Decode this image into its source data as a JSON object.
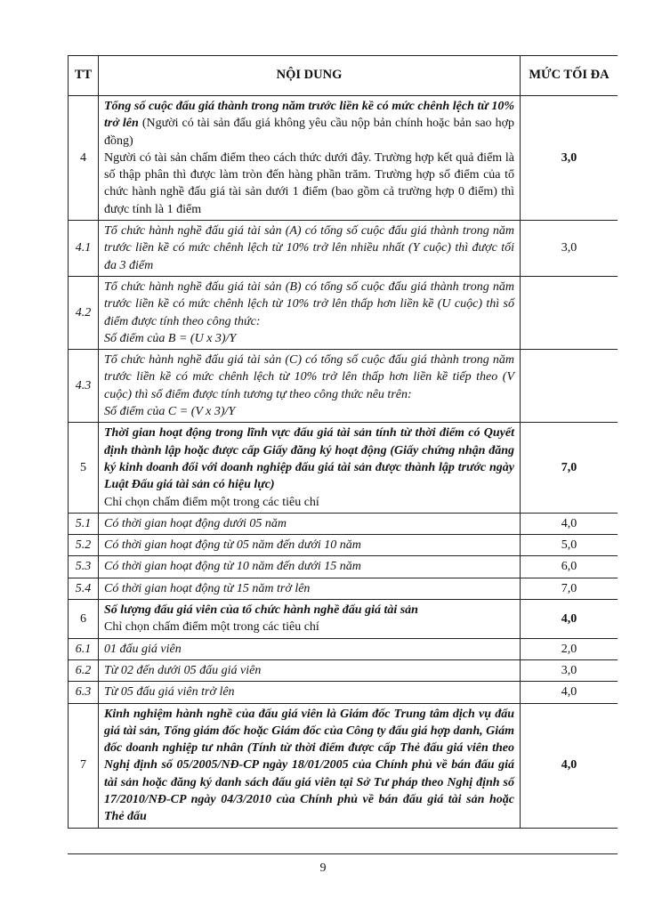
{
  "table": {
    "header": [
      "TT",
      "NỘI DUNG",
      "MỨC TỐI ĐA"
    ],
    "rows": [
      {
        "tt": "4",
        "heading": "Tổng số cuộc đấu giá thành trong năm trước liền kề có mức chênh lệch từ 10% trở lên",
        "note": "(Người có tài sản đấu giá không yêu cầu nộp bản chính hoặc bản sao hợp đồng)",
        "body": [
          "Người có tài sản chấm điểm theo cách thức dưới đây. Trường hợp kết quả điểm là số thập phân thì được làm tròn đến hàng phần trăm. Trường hợp số điểm của tổ chức hành nghề đấu giá tài sản dưới 1 điểm (bao gồm cả trường hợp 0 điểm) thì được tính là 1 điểm"
        ],
        "score": "3,0"
      },
      {
        "tt": "4.1",
        "body": [
          "Tổ chức hành nghề đấu giá tài sản (A) có tổng số cuộc đấu giá thành trong năm trước liền kề có mức chênh lệch từ 10% trở lên nhiều nhất (Y cuộc) thì được tối đa 3 điểm"
        ],
        "score": "3,0"
      },
      {
        "tt": "4.2",
        "body": [
          "Tổ chức hành nghề đấu giá tài sản (B) có tổng số cuộc đấu giá thành trong năm trước liền kề có mức chênh lệch từ 10% trở lên thấp hơn liền kề (U cuộc) thì số điểm được tính theo công thức:",
          "Số điểm của B = (U x 3)/Y"
        ]
      },
      {
        "tt": "4.3",
        "body": [
          "Tổ chức hành nghề đấu giá tài sản (C) có tổng số cuộc đấu giá thành trong năm trước liền kề có mức chênh lệch từ 10% trở lên thấp hơn liền kề tiếp theo (V cuộc) thì số điểm được tính tương tự theo công thức nêu trên:",
          "Số điểm của C = (V x 3)/Y"
        ]
      },
      {
        "tt": "5",
        "heading": "Thời gian hoạt động trong lĩnh vực đấu giá tài sản tính từ thời điểm có Quyết định thành lập hoặc được cấp Giấy đăng ký hoạt động (Giấy chứng nhận đăng ký kinh doanh đối với doanh nghiệp đấu giá tài sản được thành lập trước ngày Luật Đấu giá tài sản có hiệu lực)",
        "body": [
          "Chỉ chọn chấm điểm một trong các tiêu chí"
        ],
        "score": "7,0"
      },
      {
        "tt": "5.1",
        "body": [
          "Có thời gian hoạt động dưới 05 năm"
        ],
        "score": "4,0"
      },
      {
        "tt": "5.2",
        "body": [
          "Có thời gian hoạt động từ 05 năm đến dưới 10 năm"
        ],
        "score": "5,0"
      },
      {
        "tt": "5.3",
        "body": [
          "Có thời gian hoạt động từ 10 năm đến dưới 15 năm"
        ],
        "score": "6,0"
      },
      {
        "tt": "5.4",
        "body": [
          "Có thời gian hoạt động từ 15 năm trở lên"
        ],
        "score": "7,0"
      },
      {
        "tt": "6",
        "heading": "Số lượng đấu giá viên của tổ chức hành nghề đấu giá tài sản",
        "body": [
          "Chỉ chọn chấm điểm một trong các tiêu chí"
        ],
        "score": "4,0"
      },
      {
        "tt": "6.1",
        "body": [
          "01 đấu giá viên"
        ],
        "score": "2,0"
      },
      {
        "tt": "6.2",
        "body": [
          "Từ 02 đến dưới 05 đấu giá viên"
        ],
        "score": "3,0"
      },
      {
        "tt": "6.3",
        "body": [
          "Từ 05 đấu giá viên trở lên"
        ],
        "score": "4,0"
      },
      {
        "tt": "7",
        "heading": "Kinh nghiệm hành nghề của đấu giá viên là Giám đốc Trung tâm dịch vụ đấu giá tài sản, Tổng giám đốc hoặc Giám đốc của Công ty đấu giá hợp danh, Giám đốc doanh nghiệp tư nhân (Tính từ thời điểm được cấp Thẻ đấu giá viên theo Nghị định số 05/2005/NĐ-CP ngày 18/01/2005 của Chính phủ về bán đấu giá tài sản hoặc đăng ký danh sách đấu giá viên tại Sở Tư pháp theo Nghị định số 17/2010/NĐ-CP ngày 04/3/2010 của Chính phủ về bán đấu giá tài sản hoặc Thẻ đấu",
        "score": "4,0"
      }
    ]
  },
  "page_number": "9"
}
